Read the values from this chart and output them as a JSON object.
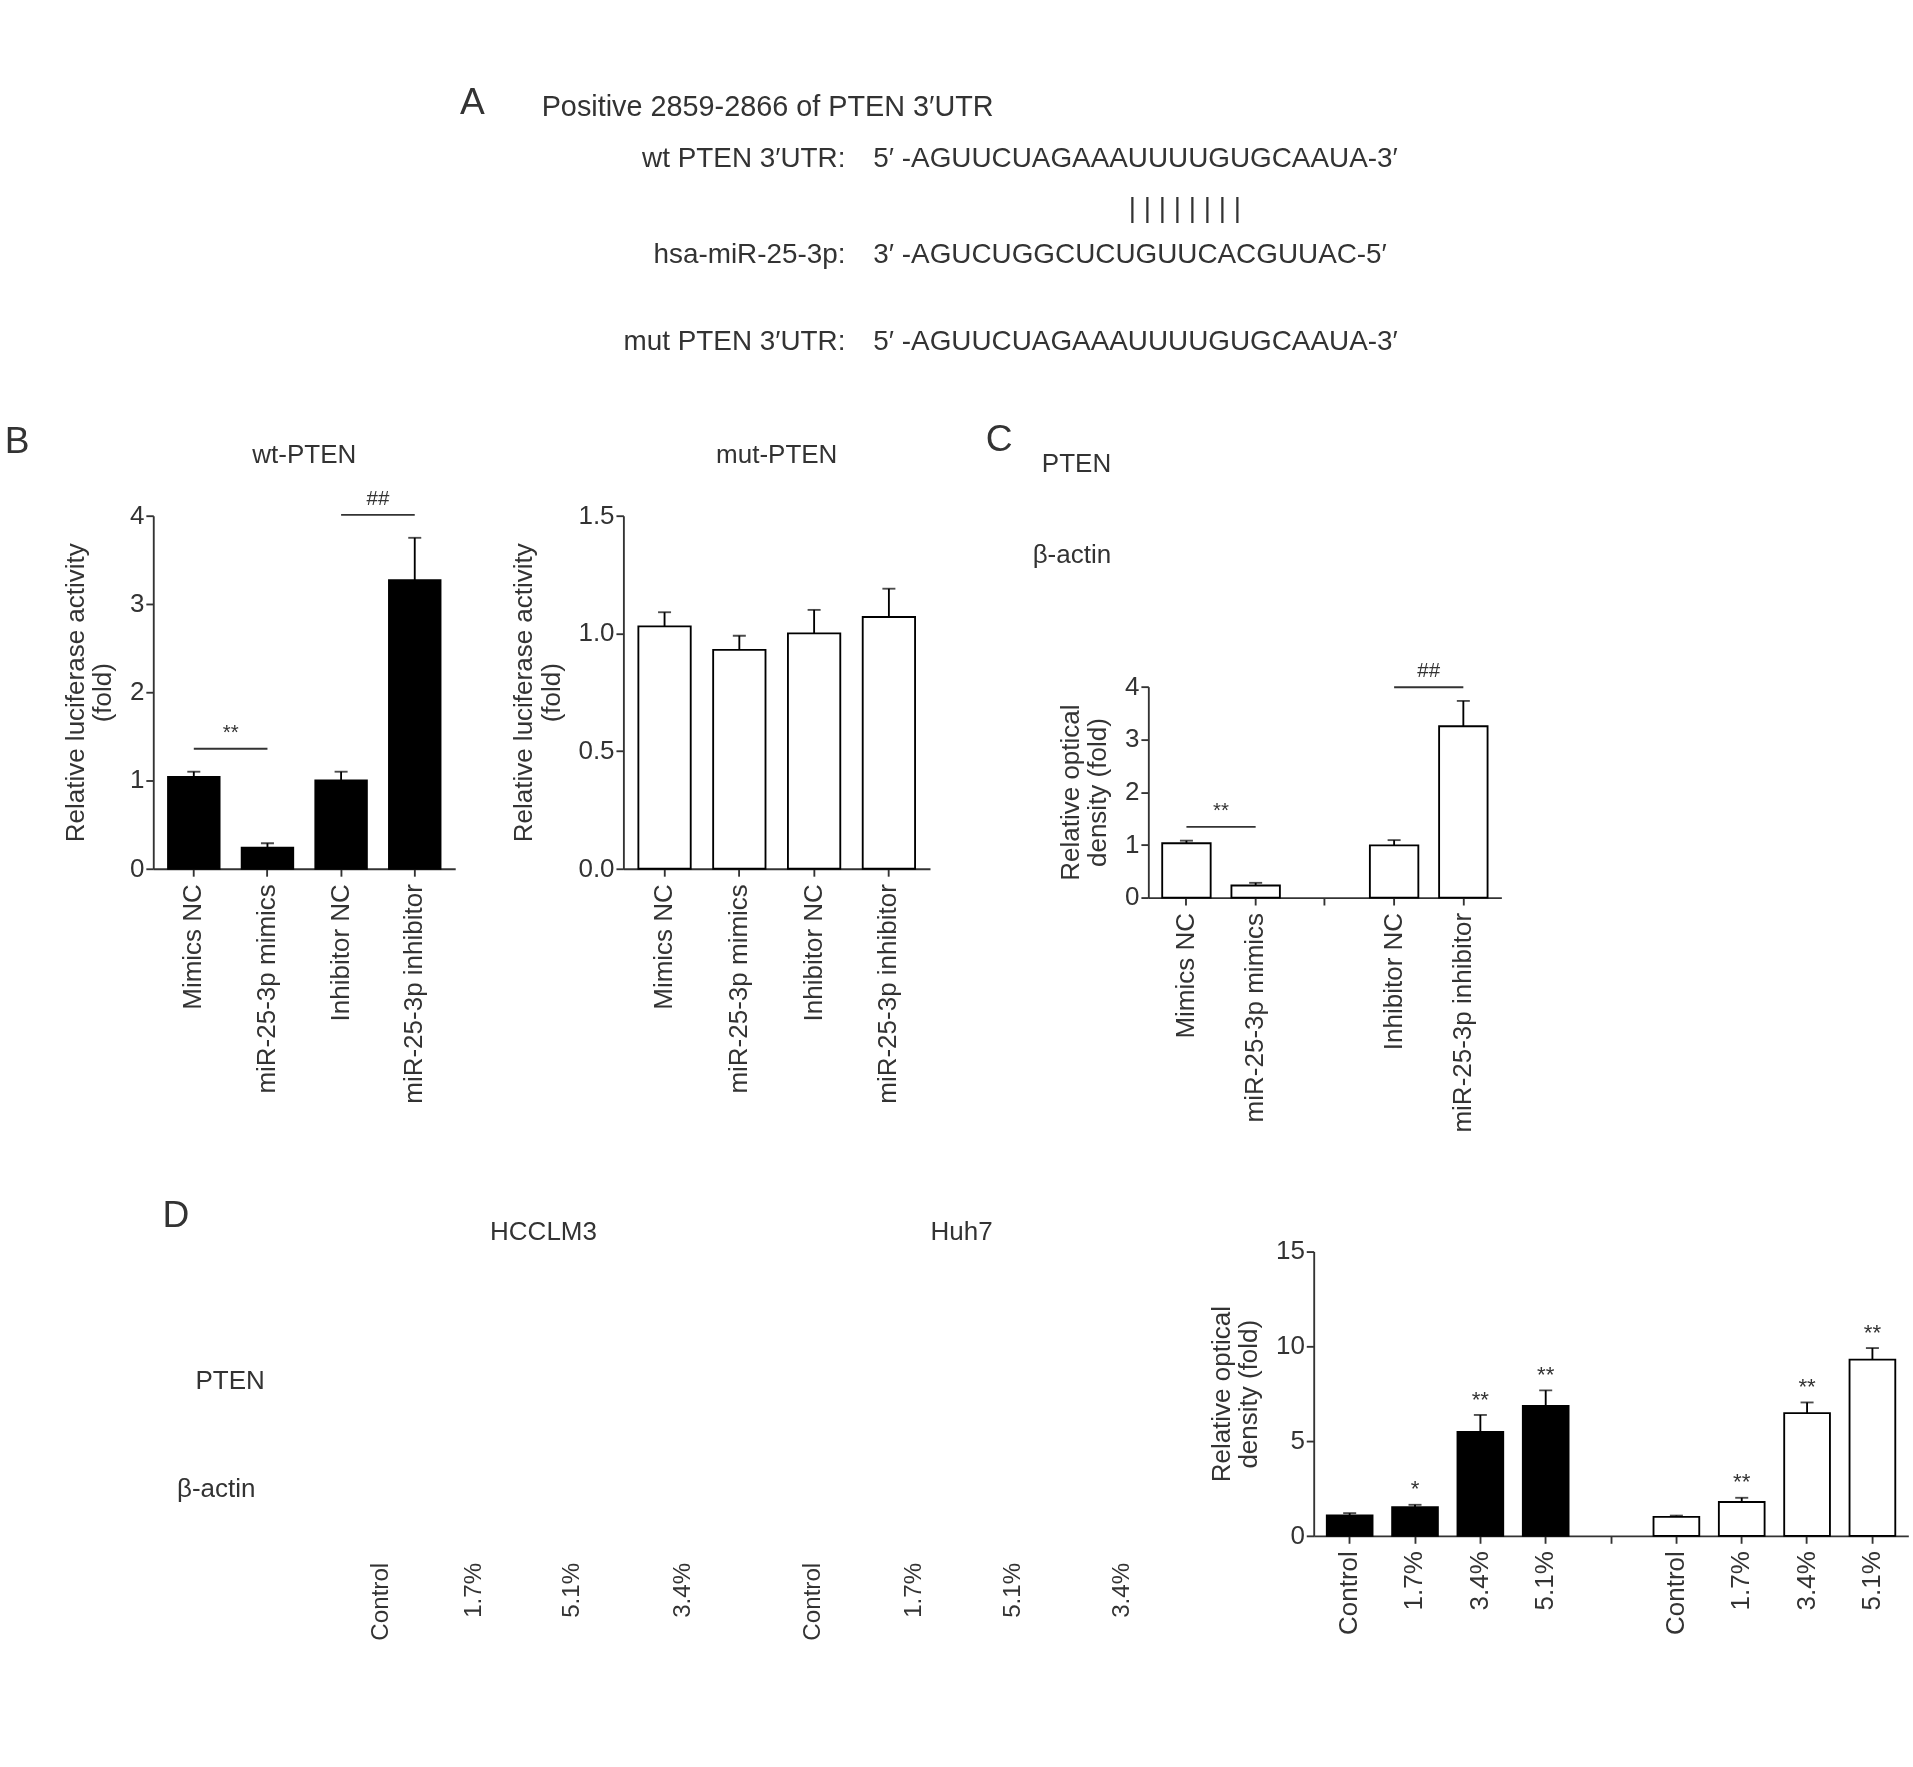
{
  "chart_data": [
    {
      "type": "other",
      "title": "Positive 2859-2866 of PTEN 3′UTR",
      "annotations": [
        "A",
        "wt PTEN 3′UTR:",
        "5′ -AGUUCUAGAAAUUUUGUGCAAUA-3′",
        "|  |  | | |  |  |  |",
        "hsa-miR-25-3p:",
        "3′ -AGUCUGGCUCUGUUCACGUUAC-5′",
        "mut PTEN 3′UTR:",
        "5′ -AGUUCUAGAAAUUUUGUGCAAUA-3′"
      ]
    },
    {
      "type": "bar",
      "title": "wt-PTEN",
      "ylabel": "Relative luciferase activity\n(fold)",
      "categories": [
        "Mimics NC",
        "miR-25-3p mimics",
        "Inhibitor NC",
        "miR-25-3p inhibitor"
      ],
      "values": [
        1.04,
        0.24,
        1.0,
        3.27
      ],
      "errors": [
        0.06,
        0.05,
        0.1,
        0.48
      ],
      "color": "#000000",
      "ylim": [
        0,
        4
      ],
      "yticks": [
        0,
        1,
        2,
        3,
        4
      ],
      "annotations": [
        "B",
        "**",
        "##"
      ]
    },
    {
      "type": "bar",
      "title": "mut-PTEN",
      "ylabel": "Relative luciferase activity\n(fold)",
      "categories": [
        "Mimics NC",
        "miR-25-3p mimics",
        "Inhibitor NC",
        "miR-25-3p inhibitor"
      ],
      "values": [
        1.03,
        0.93,
        1.0,
        1.07
      ],
      "errors": [
        0.06,
        0.06,
        0.1,
        0.12
      ],
      "color": "#ffffff",
      "ylim": [
        0,
        1.5
      ],
      "yticks": [
        {
          "value": 0,
          "label": "0.0"
        },
        0.5,
        {
          "value": 1,
          "label": "1.0"
        },
        1.5
      ]
    },
    {
      "type": "other",
      "annotations": [
        "C",
        "PTEN",
        "β-actin"
      ]
    },
    {
      "type": "bar",
      "ylabel": "Relative optical\ndensity (fold)",
      "categories": [
        "Mimics NC",
        "miR-25-3p mimics",
        null,
        "Inhibitor NC",
        "miR-25-3p inhibitor"
      ],
      "values": [
        1.03,
        0.23,
        null,
        0.99,
        3.25
      ],
      "errors": [
        0.05,
        0.05,
        null,
        0.1,
        0.48
      ],
      "color": "#ffffff",
      "ylim": [
        0,
        4
      ],
      "yticks": [
        0,
        1,
        2,
        3,
        4
      ],
      "annotations": [
        "**",
        "##"
      ]
    },
    {
      "type": "other",
      "annotations": [
        "D",
        "HCCLM3",
        "Huh7",
        "PTEN",
        "β-actin",
        "Control",
        "1.7%",
        "5.1%",
        "3.4%",
        "Control",
        "1.7%",
        "5.1%",
        "3.4%"
      ]
    },
    {
      "type": "bar",
      "ylabel": "Relative optical\ndensity (fold)",
      "categories": [
        "Control",
        "1.7%",
        "3.4%",
        "5.1%",
        null,
        "Control",
        "1.7%",
        "3.4%",
        "5.1%"
      ],
      "values": [
        1.08,
        1.52,
        5.48,
        6.85,
        null,
        1.0,
        1.79,
        6.48,
        9.3
      ],
      "errors": [
        0.12,
        0.12,
        0.9,
        0.83,
        null,
        0.07,
        0.22,
        0.56,
        0.61
      ],
      "colors": [
        "#000000",
        "#000000",
        "#000000",
        "#000000",
        null,
        "#ffffff",
        "#ffffff",
        "#ffffff",
        "#ffffff"
      ],
      "value_labels": [
        null,
        "*",
        "**",
        "**",
        null,
        null,
        "**",
        "**",
        "**"
      ],
      "ylim": [
        0,
        15
      ],
      "yticks": [
        0,
        5,
        10,
        15
      ]
    }
  ]
}
